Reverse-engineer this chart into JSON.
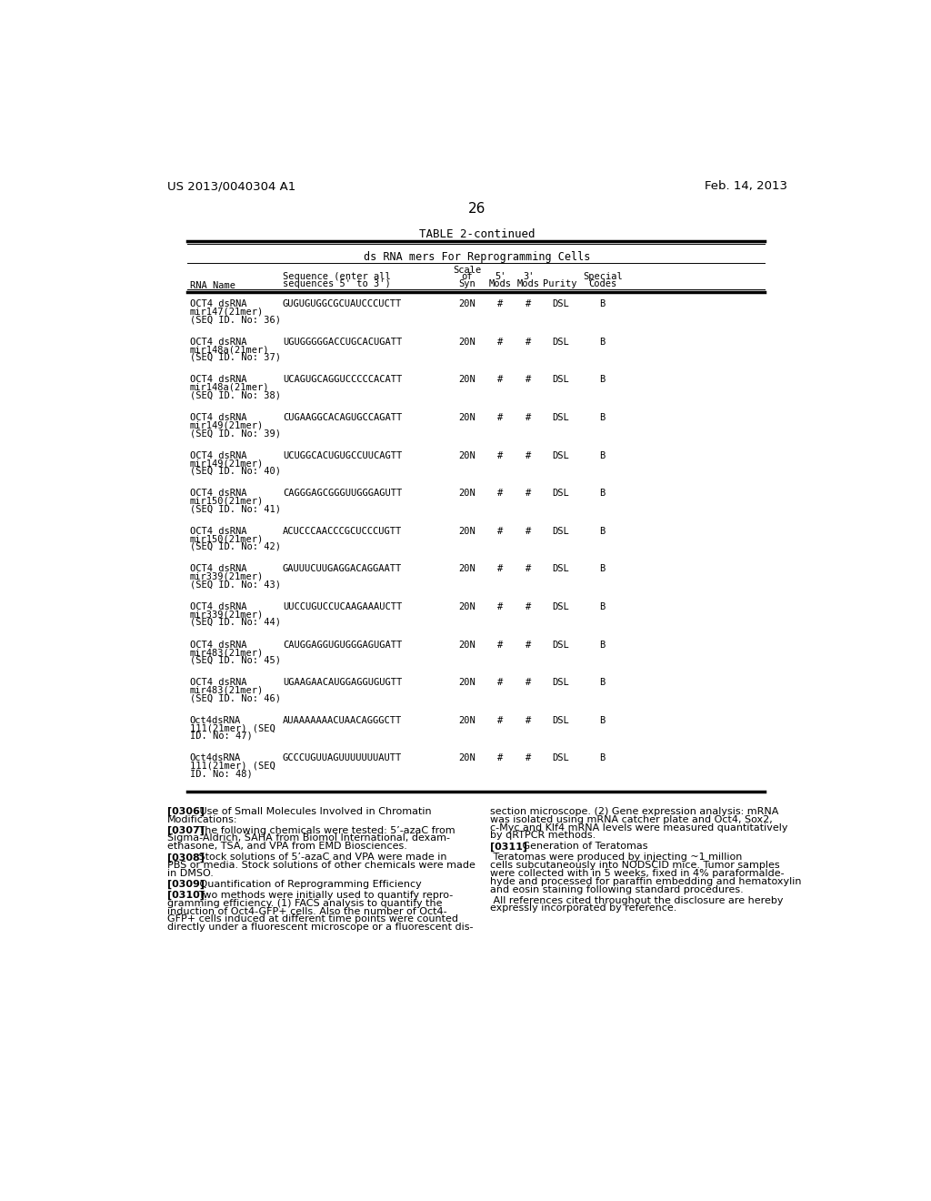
{
  "bg_color": "#ffffff",
  "header_left": "US 2013/0040304 A1",
  "header_right": "Feb. 14, 2013",
  "page_number": "26",
  "table_title": "TABLE 2-continued",
  "table_subtitle": "ds RNA mers For Reprogramming Cells",
  "rows": [
    {
      "name_line1": "OCT4 dsRNA",
      "name_line2": "mir147(21mer)",
      "name_line3": "(SEQ ID. No: 36)",
      "sequence": "GUGUGUGGCGCUAUCCCUCTT",
      "scale": "20N",
      "five": "#",
      "three": "#",
      "purity": "DSL",
      "special": "B"
    },
    {
      "name_line1": "OCT4 dsRNA",
      "name_line2": "mir148a(21mer)",
      "name_line3": "(SEQ ID. No: 37)",
      "sequence": "UGUGGGGGACCUGCACUGATT",
      "scale": "20N",
      "five": "#",
      "three": "#",
      "purity": "DSL",
      "special": "B"
    },
    {
      "name_line1": "OCT4 dsRNA",
      "name_line2": "mir148a(21mer)",
      "name_line3": "(SEQ ID. No: 38)",
      "sequence": "UCAGUGCAGGUCCCCCACATT",
      "scale": "20N",
      "five": "#",
      "three": "#",
      "purity": "DSL",
      "special": "B"
    },
    {
      "name_line1": "OCT4 dsRNA",
      "name_line2": "mir149(21mer)",
      "name_line3": "(SEQ ID. No: 39)",
      "sequence": "CUGAAGGCACAGUGCCAGATT",
      "scale": "20N",
      "five": "#",
      "three": "#",
      "purity": "DSL",
      "special": "B"
    },
    {
      "name_line1": "OCT4 dsRNA",
      "name_line2": "mir149(21mer)",
      "name_line3": "(SEQ ID. No: 40)",
      "sequence": "UCUGGCACUGUGCCUUCAGTT",
      "scale": "20N",
      "five": "#",
      "three": "#",
      "purity": "DSL",
      "special": "B"
    },
    {
      "name_line1": "OCT4 dsRNA",
      "name_line2": "mir150(21mer)",
      "name_line3": "(SEQ ID. No: 41)",
      "sequence": "CAGGGAGCGGGUUGGGAGUTT",
      "scale": "20N",
      "five": "#",
      "three": "#",
      "purity": "DSL",
      "special": "B"
    },
    {
      "name_line1": "OCT4 dsRNA",
      "name_line2": "mir150(21mer)",
      "name_line3": "(SEQ ID. No: 42)",
      "sequence": "ACUCCCAACCCGCUCCCUGTT",
      "scale": "20N",
      "five": "#",
      "three": "#",
      "purity": "DSL",
      "special": "B"
    },
    {
      "name_line1": "OCT4 dsRNA",
      "name_line2": "mir339(21mer)",
      "name_line3": "(SEQ ID. No: 43)",
      "sequence": "GAUUUCUUGAGGACAGGAATT",
      "scale": "20N",
      "five": "#",
      "three": "#",
      "purity": "DSL",
      "special": "B"
    },
    {
      "name_line1": "OCT4 dsRNA",
      "name_line2": "mir339(21mer)",
      "name_line3": "(SEQ ID. No: 44)",
      "sequence": "UUCCUGUCCUCAAGAAAUCTT",
      "scale": "20N",
      "five": "#",
      "three": "#",
      "purity": "DSL",
      "special": "B"
    },
    {
      "name_line1": "OCT4 dsRNA",
      "name_line2": "mir483(21mer)",
      "name_line3": "(SEQ ID. No: 45)",
      "sequence": "CAUGGAGGUGUGGGAGUGATT",
      "scale": "20N",
      "five": "#",
      "three": "#",
      "purity": "DSL",
      "special": "B"
    },
    {
      "name_line1": "OCT4 dsRNA",
      "name_line2": "mir483(21mer)",
      "name_line3": "(SEQ ID. No: 46)",
      "sequence": "UGAAGAACAUGGAGGUGUGTT",
      "scale": "20N",
      "five": "#",
      "three": "#",
      "purity": "DSL",
      "special": "B"
    },
    {
      "name_line1": "Oct4dsRNA",
      "name_line2": "111(21mer) (SEQ",
      "name_line3": "ID. No: 47)",
      "sequence": "AUAAAAAAACUAACAGGGCTT",
      "scale": "20N",
      "five": "#",
      "three": "#",
      "purity": "DSL",
      "special": "B"
    },
    {
      "name_line1": "Oct4dsRNA",
      "name_line2": "111(21mer) (SEQ",
      "name_line3": "ID. No: 48)",
      "sequence": "GCCCUGUUAGUUUUUUUAUTT",
      "scale": "20N",
      "five": "#",
      "three": "#",
      "purity": "DSL",
      "special": "B"
    }
  ],
  "left_paragraphs": [
    {
      "tag": "[0306]",
      "rest": " Use of Small Molecules Involved in Chromatin",
      "continuation": [
        "Modifications:"
      ]
    },
    {
      "tag": "[0307]",
      "rest": " The following chemicals were tested: 5’-azaC from",
      "continuation": [
        "Sigma-Aldrich, SAHA from Biomol International, dexam-",
        "ethasone, TSA, and VPA from EMD Biosciences."
      ]
    },
    {
      "tag": "[0308]",
      "rest": " Stock solutions of 5’-azaC and VPA were made in",
      "continuation": [
        "PBS or media. Stock solutions of other chemicals were made",
        "in DMSO."
      ]
    },
    {
      "tag": "[0309]",
      "rest": " Quantification of Reprogramming Efficiency",
      "continuation": []
    },
    {
      "tag": "[0310]",
      "rest": " Two methods were initially used to quantify repro-",
      "continuation": [
        "gramming efficiency. (1) FACS analysis to quantify the",
        "induction of Oct4-GFP+ cells. Also the number of Oct4-",
        "GFP+ cells induced at different time points were counted",
        "directly under a fluorescent microscope or a fluorescent dis-"
      ]
    }
  ],
  "right_paragraphs": [
    {
      "tag": "",
      "rest": "section microscope. (2) Gene expression analysis: mRNA",
      "continuation": [
        "was isolated using mRNA catcher plate and Oct4, Sox2,",
        "c-Myc and Klf4 mRNA levels were measured quantitatively",
        "by qRTPCR methods."
      ]
    },
    {
      "tag": "[0311]",
      "rest": " Generation of Teratomas",
      "continuation": []
    },
    {
      "tag": "",
      "rest": " Teratomas were produced by injecting ~1 million",
      "continuation": [
        "cells subcutaneously into NODSCID mice. Tumor samples",
        "were collected with in 5 weeks, fixed in 4% paraformalde-",
        "hyde and processed for paraffin embedding and hematoxylin",
        "and eosin staining following standard procedures."
      ]
    },
    {
      "tag": "",
      "rest": " All references cited throughout the disclosure are hereby",
      "continuation": [
        "expressly incorporated by reference."
      ]
    }
  ]
}
